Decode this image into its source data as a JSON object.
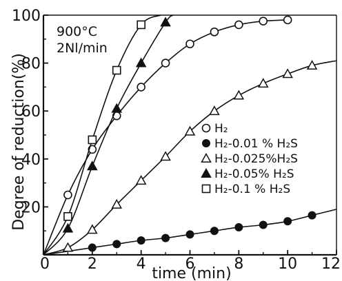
{
  "chart_data": {
    "type": "line",
    "title": "",
    "annotations": [
      "900°C",
      "2Nl/min"
    ],
    "xlabel": "time (min)",
    "ylabel": "Degree of reduction(%)",
    "xlim": [
      0,
      12
    ],
    "ylim": [
      0,
      100
    ],
    "xticks": [
      0,
      2,
      4,
      6,
      8,
      10,
      12
    ],
    "yticks": [
      20,
      40,
      60,
      80,
      100
    ],
    "xtick_labels": [
      "0",
      "2",
      "4",
      "6",
      "8",
      "10",
      "12"
    ],
    "ytick_labels": [
      "20",
      "40",
      "60",
      "80",
      "100"
    ],
    "grid": false,
    "legend_position": "right",
    "series": [
      {
        "name": "H₂",
        "marker": "circle-open",
        "x": [
          0,
          1,
          2,
          3,
          4,
          5,
          6,
          7,
          8,
          9,
          10
        ],
        "y": [
          0,
          25,
          44,
          58,
          70,
          80,
          88,
          93,
          96,
          97.5,
          98
        ]
      },
      {
        "name": "H₂-0.01 % H₂S",
        "marker": "circle-filled",
        "x": [
          0,
          2,
          3,
          4,
          5,
          6,
          7,
          8,
          9,
          10,
          11
        ],
        "y": [
          0,
          3,
          4.5,
          6,
          7,
          8.5,
          10,
          11.5,
          12.5,
          14,
          16.5
        ],
        "curve_end": [
          12,
          19
        ]
      },
      {
        "name": "H₂-0.025%H₂S",
        "marker": "triangle-open",
        "x": [
          0,
          1,
          2,
          3,
          4,
          5,
          6,
          7,
          8,
          9,
          10,
          11
        ],
        "y": [
          0,
          3,
          10.5,
          21,
          31,
          41,
          51.5,
          60,
          66.5,
          71.5,
          75.5,
          79
        ],
        "curve_end": [
          12,
          81
        ]
      },
      {
        "name": "H₂-0.05% H₂S",
        "marker": "triangle-filled",
        "x": [
          0,
          1,
          2,
          3,
          4,
          5
        ],
        "y": [
          0,
          11,
          37,
          61,
          80,
          97
        ],
        "curve_end": [
          5.3,
          100
        ]
      },
      {
        "name": "H₂-0.1 % H₂S",
        "marker": "square-open",
        "x": [
          0,
          1,
          2,
          3,
          4
        ],
        "y": [
          0,
          16,
          48,
          77,
          96
        ],
        "curve_end": [
          4.8,
          100
        ]
      }
    ]
  }
}
